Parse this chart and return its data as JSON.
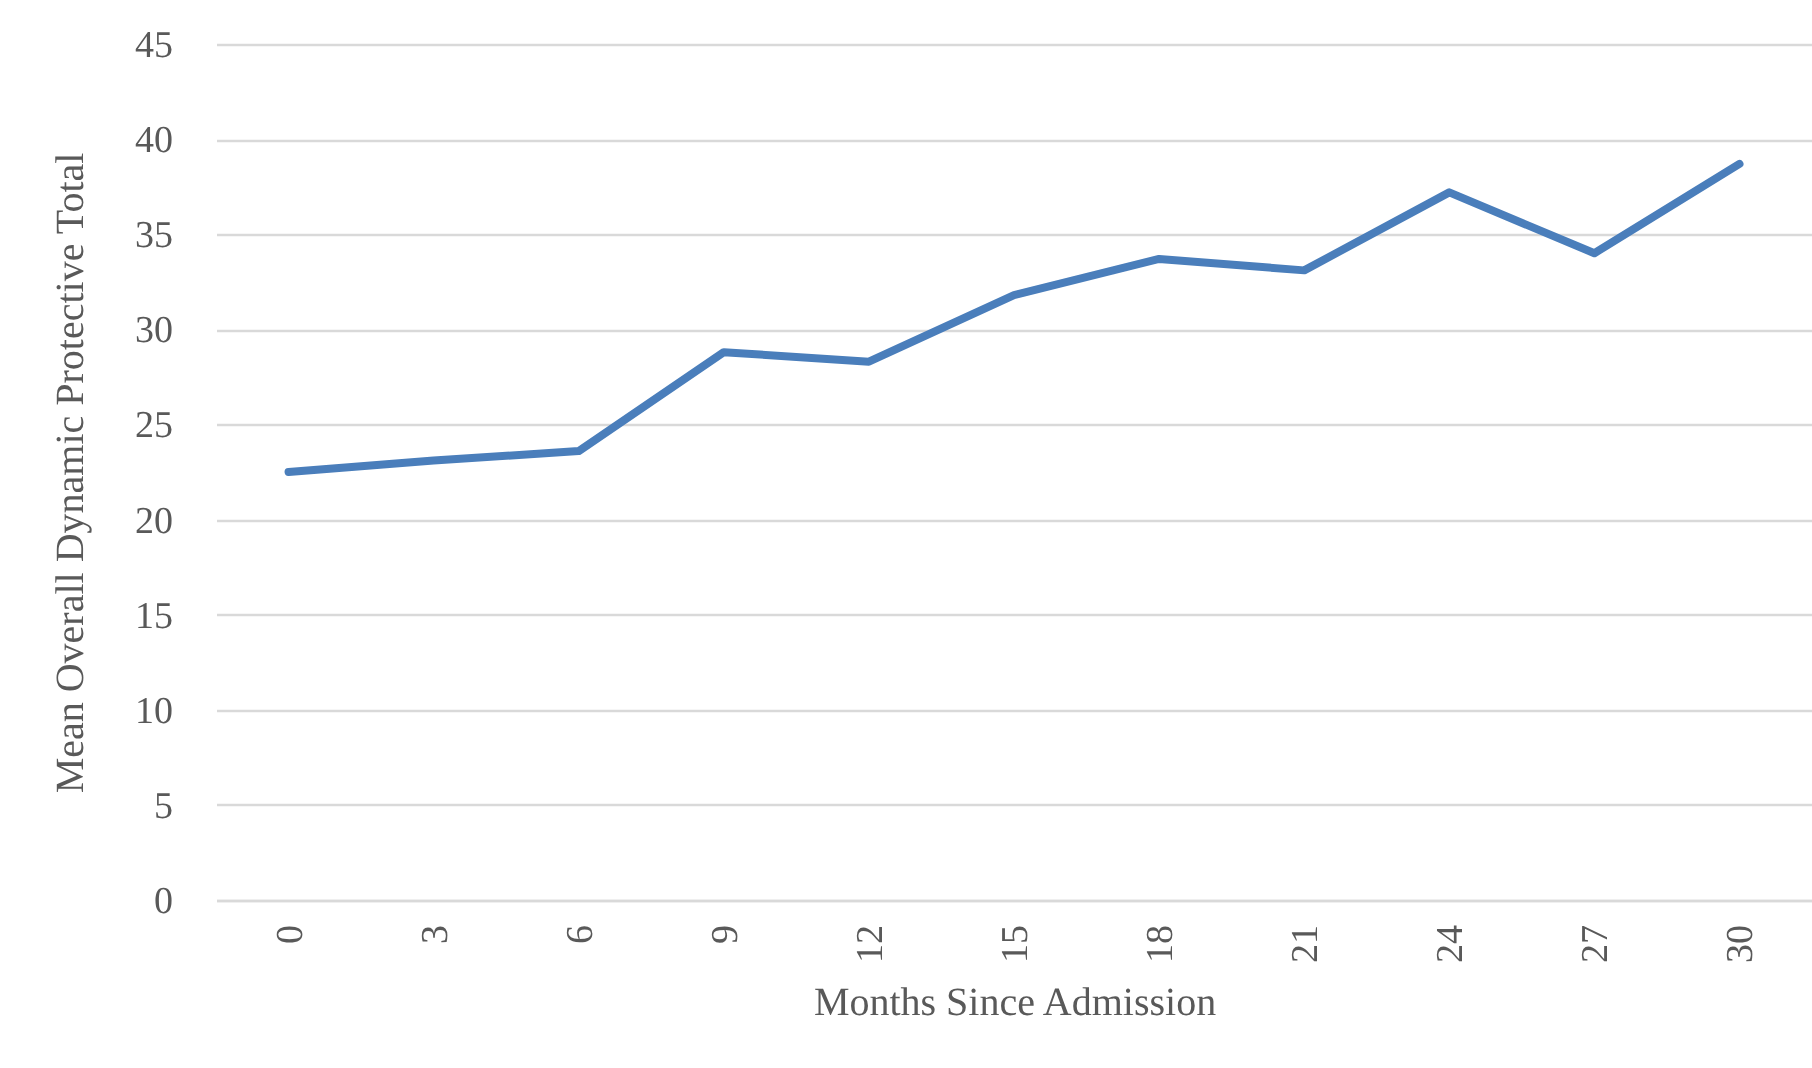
{
  "chart_data": {
    "type": "line",
    "xlabel": "Months Since Admission",
    "ylabel": "Mean Overall Dynamic Protective Total",
    "categories": [
      "0",
      "3",
      "6",
      "9",
      "12",
      "15",
      "18",
      "21",
      "24",
      "27",
      "30"
    ],
    "series": [
      {
        "color": "#4a7ebb",
        "values": [
          22.5,
          23.1,
          23.6,
          28.8,
          28.3,
          31.8,
          33.7,
          33.1,
          37.2,
          34.0,
          38.7
        ]
      }
    ],
    "ylim": [
      0,
      45
    ],
    "yticks": [
      0,
      5,
      10,
      15,
      20,
      25,
      30,
      35,
      40,
      45
    ],
    "grid": "y"
  }
}
